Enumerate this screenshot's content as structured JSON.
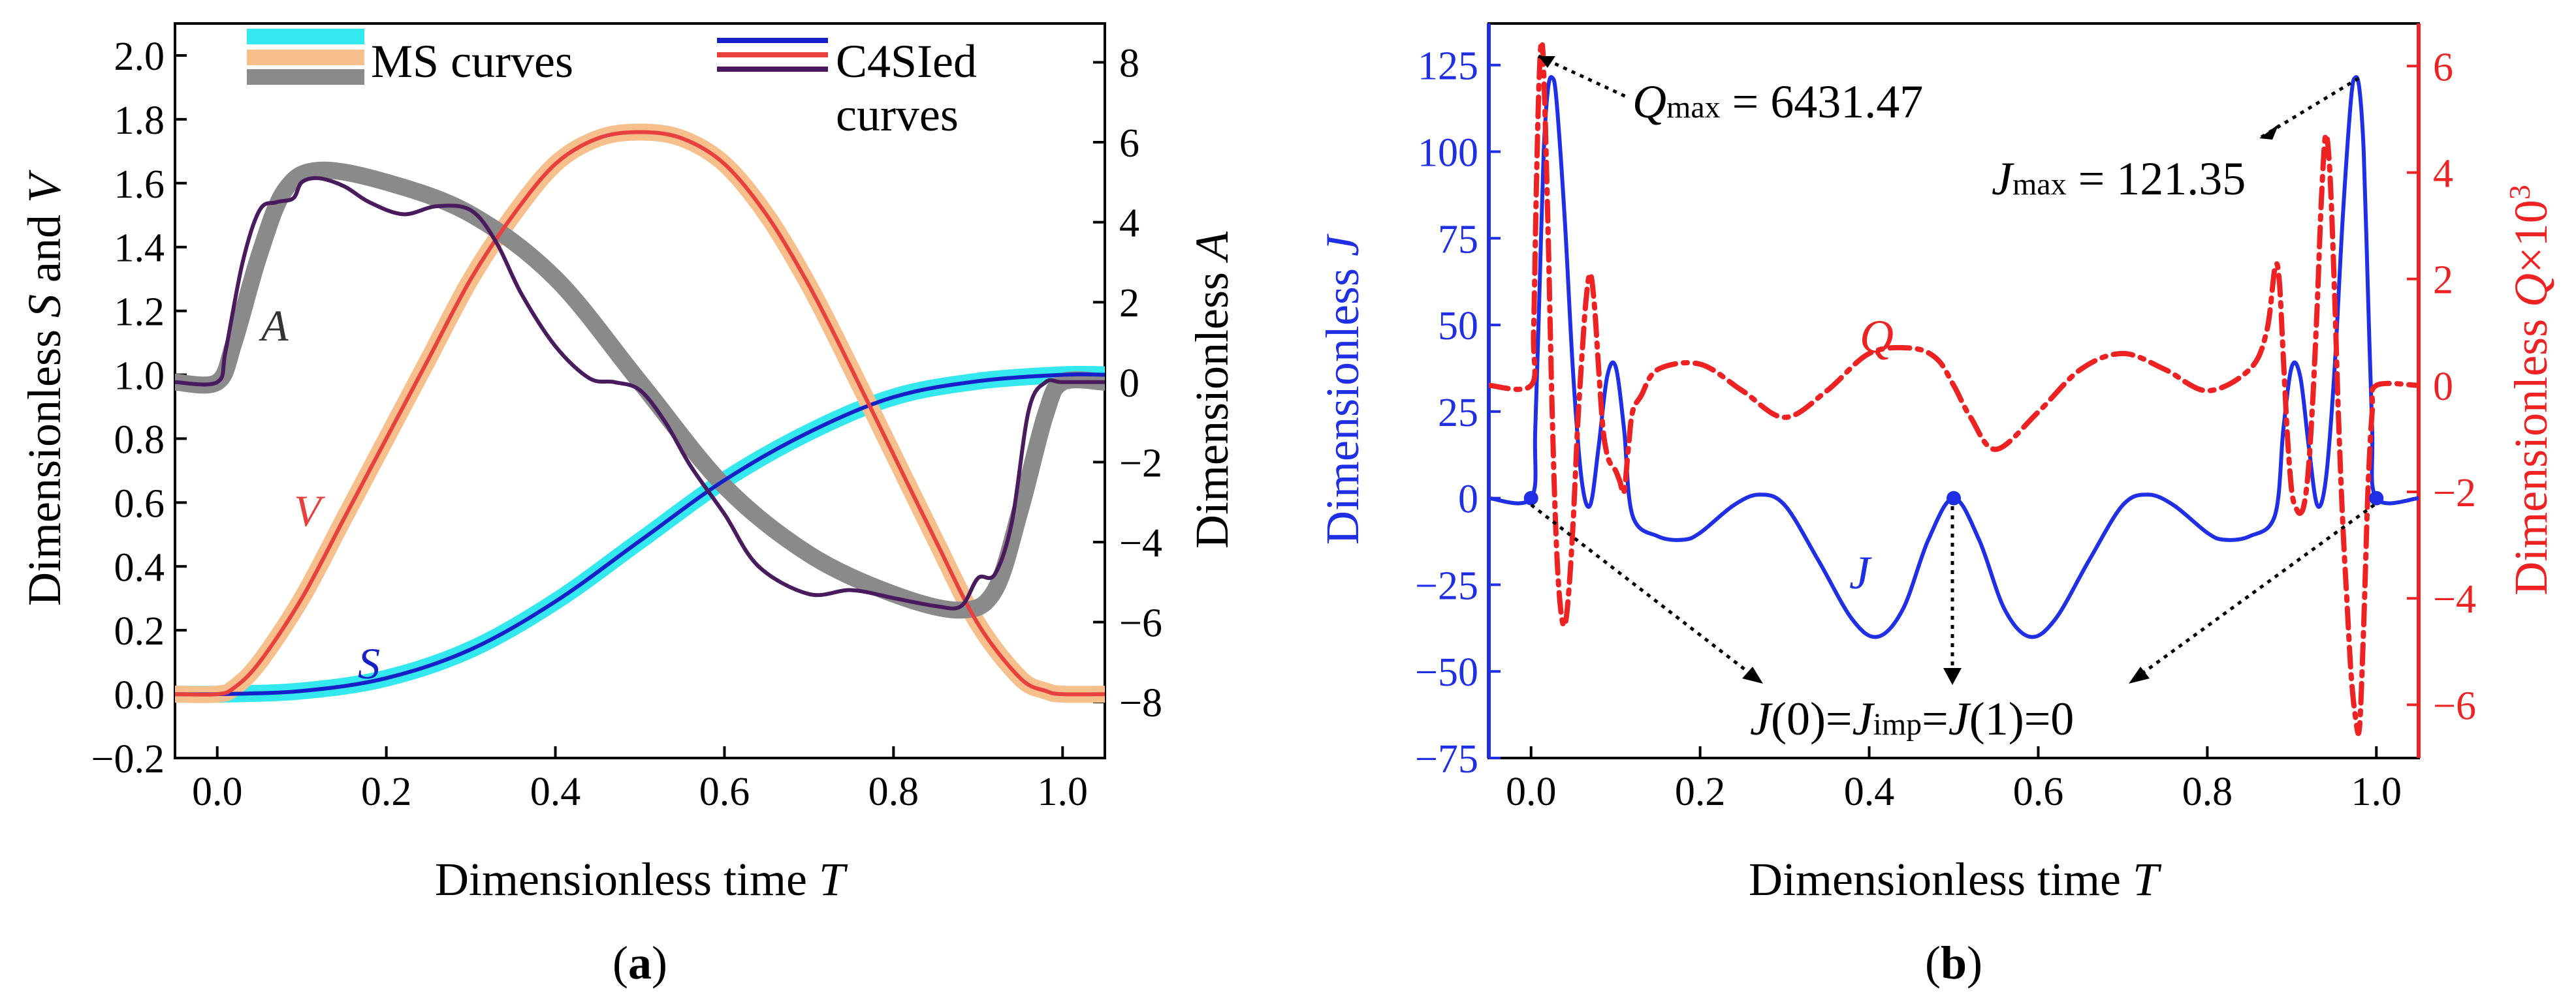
{
  "figure": {
    "panel_a_caption": "a",
    "panel_b_caption": "b"
  },
  "colors": {
    "ms_s": "#33e8ee",
    "ms_v": "#f6bf8c",
    "ms_a": "#8a8a8a",
    "c4_s": "#1620c8",
    "c4_v": "#e8403e",
    "c4_a": "#4a1a5e",
    "jerk": "#1f2fe6",
    "snap": "#ee2222"
  },
  "chart_data": [
    {
      "id": "a",
      "type": "line",
      "xlabel_prefix": "Dimensionless time ",
      "xlabel_var": "T",
      "ylabel_prefix": "Dimensionless ",
      "ylabel_var1": "S",
      "ylabel_mid": " and ",
      "ylabel_var2": "V",
      "y2label_prefix": "Dimensionless ",
      "y2label_var": "A",
      "xlim": [
        -0.05,
        1.05
      ],
      "ylim": [
        -0.2,
        2.1
      ],
      "y2lim": [
        -9.4,
        8.97
      ],
      "xticks": [
        0.0,
        0.2,
        0.4,
        0.6,
        0.8,
        1.0
      ],
      "xtick_labels": [
        "0.0",
        "0.2",
        "0.4",
        "0.6",
        "0.8",
        "1.0"
      ],
      "yticks": [
        -0.2,
        0.0,
        0.2,
        0.4,
        0.6,
        0.8,
        1.0,
        1.2,
        1.4,
        1.6,
        1.8,
        2.0
      ],
      "ytick_labels": [
        "−0.2",
        "0.0",
        "0.2",
        "0.4",
        "0.6",
        "0.8",
        "1.0",
        "1.2",
        "1.4",
        "1.6",
        "1.8",
        "2.0"
      ],
      "y2ticks": [
        -8,
        -6,
        -4,
        -2,
        0,
        2,
        4,
        6,
        8
      ],
      "y2tick_labels": [
        "−8",
        "−6",
        "−4",
        "−2",
        "0",
        "2",
        "4",
        "6",
        "8"
      ],
      "legend": [
        "MS curves",
        "C4SIed",
        "curves"
      ],
      "annotations": [
        "A",
        "V",
        "S"
      ],
      "series": [
        {
          "name": "MS S",
          "axis": "left",
          "color_key": "ms_s",
          "style": "band",
          "x": [
            -0.05,
            0.0,
            0.1,
            0.2,
            0.3,
            0.4,
            0.5,
            0.6,
            0.7,
            0.8,
            0.9,
            1.0,
            1.05
          ],
          "values": [
            0.0,
            0.0,
            0.01,
            0.05,
            0.14,
            0.29,
            0.48,
            0.67,
            0.82,
            0.93,
            0.98,
            1.0,
            1.0
          ]
        },
        {
          "name": "MS V",
          "axis": "left",
          "color_key": "ms_v",
          "style": "band",
          "x": [
            -0.05,
            0.0,
            0.02,
            0.05,
            0.1,
            0.15,
            0.2,
            0.25,
            0.3,
            0.35,
            0.4,
            0.45,
            0.5,
            0.55,
            0.6,
            0.65,
            0.7,
            0.75,
            0.8,
            0.85,
            0.9,
            0.95,
            0.98,
            1.0,
            1.05
          ],
          "values": [
            0.0,
            0.0,
            0.02,
            0.1,
            0.3,
            0.55,
            0.8,
            1.05,
            1.3,
            1.5,
            1.66,
            1.74,
            1.76,
            1.74,
            1.66,
            1.5,
            1.28,
            1.02,
            0.75,
            0.48,
            0.22,
            0.05,
            0.01,
            0.0,
            0.0
          ]
        },
        {
          "name": "MS A",
          "axis": "right",
          "color_key": "ms_a",
          "style": "band",
          "x": [
            -0.05,
            0.0,
            0.02,
            0.05,
            0.08,
            0.12,
            0.2,
            0.3,
            0.4,
            0.5,
            0.6,
            0.7,
            0.8,
            0.88,
            0.92,
            0.95,
            0.98,
            1.0,
            1.05
          ],
          "values": [
            0.0,
            0.0,
            1.0,
            3.2,
            4.8,
            5.3,
            5.0,
            4.2,
            2.6,
            0.0,
            -2.6,
            -4.3,
            -5.3,
            -5.7,
            -5.2,
            -3.2,
            -0.8,
            0.0,
            0.0
          ]
        },
        {
          "name": "C4SIed S",
          "axis": "left",
          "color_key": "c4_s",
          "style": "line",
          "x": [
            -0.05,
            0.0,
            0.1,
            0.2,
            0.3,
            0.4,
            0.5,
            0.6,
            0.7,
            0.8,
            0.9,
            1.0,
            1.05
          ],
          "values": [
            0.0,
            0.0,
            0.01,
            0.05,
            0.14,
            0.29,
            0.48,
            0.67,
            0.82,
            0.93,
            0.98,
            1.0,
            1.0
          ]
        },
        {
          "name": "C4SIed V",
          "axis": "left",
          "color_key": "c4_v",
          "style": "line",
          "x": [
            -0.05,
            0.0,
            0.02,
            0.05,
            0.1,
            0.15,
            0.2,
            0.25,
            0.3,
            0.35,
            0.4,
            0.45,
            0.5,
            0.55,
            0.6,
            0.65,
            0.7,
            0.75,
            0.8,
            0.85,
            0.9,
            0.95,
            0.98,
            1.0,
            1.05
          ],
          "values": [
            0.0,
            0.0,
            0.02,
            0.1,
            0.3,
            0.55,
            0.8,
            1.05,
            1.3,
            1.5,
            1.66,
            1.74,
            1.76,
            1.74,
            1.66,
            1.5,
            1.28,
            1.02,
            0.75,
            0.48,
            0.22,
            0.05,
            0.01,
            0.0,
            0.0
          ]
        },
        {
          "name": "C4SIed A",
          "axis": "right",
          "color_key": "c4_a",
          "style": "line",
          "x": [
            -0.05,
            0.0,
            0.01,
            0.03,
            0.05,
            0.07,
            0.09,
            0.1,
            0.12,
            0.15,
            0.18,
            0.22,
            0.26,
            0.3,
            0.33,
            0.36,
            0.4,
            0.44,
            0.47,
            0.5,
            0.53,
            0.56,
            0.6,
            0.64,
            0.7,
            0.75,
            0.8,
            0.85,
            0.88,
            0.9,
            0.92,
            0.94,
            0.96,
            0.98,
            1.0,
            1.05
          ],
          "values": [
            0.0,
            0.0,
            0.8,
            3.0,
            4.3,
            4.5,
            4.6,
            5.0,
            5.1,
            4.9,
            4.5,
            4.2,
            4.4,
            4.3,
            3.5,
            2.2,
            0.9,
            0.1,
            0.0,
            -0.2,
            -1.0,
            -2.1,
            -3.3,
            -4.6,
            -5.3,
            -5.2,
            -5.4,
            -5.6,
            -5.6,
            -4.9,
            -4.8,
            -3.5,
            -0.7,
            0.0,
            0.0,
            0.0
          ]
        }
      ]
    },
    {
      "id": "b",
      "type": "line",
      "xlabel_prefix": "Dimensionless time ",
      "xlabel_var": "T",
      "ylabel_prefix": "Dimensionless ",
      "ylabel_var": "J",
      "y2label_prefix": "Dimensionless ",
      "y2label_var": "Q",
      "y2label_suffix": "×10",
      "y2label_sup": "3",
      "xlim": [
        -0.05,
        1.05
      ],
      "ylim": [
        -75,
        137
      ],
      "y2lim": [
        -7.0,
        6.8
      ],
      "xticks": [
        0.0,
        0.2,
        0.4,
        0.6,
        0.8,
        1.0
      ],
      "xtick_labels": [
        "0.0",
        "0.2",
        "0.4",
        "0.6",
        "0.8",
        "1.0"
      ],
      "yticks": [
        -75,
        -50,
        -25,
        0,
        25,
        50,
        75,
        100,
        125
      ],
      "ytick_labels": [
        "−75",
        "−50",
        "−25",
        "0",
        "25",
        "50",
        "75",
        "100",
        "125"
      ],
      "y2ticks": [
        -6,
        -4,
        -2,
        0,
        2,
        4,
        6
      ],
      "y2tick_labels": [
        "−6",
        "−4",
        "−2",
        "0",
        "2",
        "4",
        "6"
      ],
      "annotations": {
        "q_max_var": "Q",
        "q_max_sub": "max",
        "q_max_val": " = 6431.47",
        "j_max_var": "J",
        "j_max_sub": "max",
        "j_max_val": " = 121.35",
        "q_label": "Q",
        "j_label": "J",
        "boundary_a": "J",
        "boundary_b": "(0)=",
        "boundary_c": "J",
        "boundary_sub": "imp",
        "boundary_d": "=",
        "boundary_e": "J",
        "boundary_f": "(1)=0"
      },
      "series": [
        {
          "name": "J",
          "axis": "left",
          "color_key": "jerk",
          "style": "line",
          "x": [
            -0.05,
            0.0,
            0.005,
            0.01,
            0.015,
            0.02,
            0.025,
            0.03,
            0.04,
            0.05,
            0.06,
            0.07,
            0.08,
            0.09,
            0.1,
            0.11,
            0.12,
            0.15,
            0.18,
            0.2,
            0.24,
            0.27,
            0.3,
            0.34,
            0.38,
            0.41,
            0.44,
            0.47,
            0.5,
            0.53,
            0.56,
            0.59,
            0.62,
            0.66,
            0.7,
            0.73,
            0.76,
            0.8,
            0.82,
            0.85,
            0.88,
            0.89,
            0.9,
            0.91,
            0.92,
            0.93,
            0.94,
            0.95,
            0.96,
            0.97,
            0.975,
            0.98,
            0.985,
            0.99,
            0.995,
            1.0,
            1.05
          ],
          "values": [
            0.0,
            0.0,
            20.0,
            60.0,
            100.0,
            118.0,
            121.35,
            115.0,
            80.0,
            35.0,
            5.0,
            -2.0,
            15.0,
            35.0,
            38.0,
            20.0,
            -5.0,
            -11.0,
            -12.0,
            -10.0,
            -2.0,
            1.0,
            -2.0,
            -18.0,
            -35.0,
            -40.0,
            -32.0,
            -12.0,
            0.0,
            -12.0,
            -32.0,
            -40.0,
            -35.0,
            -18.0,
            -2.0,
            1.0,
            -2.0,
            -10.0,
            -12.0,
            -11.0,
            -5.0,
            20.0,
            38.0,
            35.0,
            15.0,
            -2.0,
            5.0,
            35.0,
            80.0,
            115.0,
            121.35,
            118.0,
            100.0,
            60.0,
            20.0,
            0.0,
            0.0
          ]
        },
        {
          "name": "Q",
          "axis": "right",
          "color_key": "snap",
          "style": "dashdot",
          "x": [
            -0.05,
            0.0,
            0.003,
            0.006,
            0.009,
            0.012,
            0.015,
            0.02,
            0.025,
            0.03,
            0.035,
            0.04,
            0.045,
            0.05,
            0.055,
            0.06,
            0.065,
            0.07,
            0.075,
            0.08,
            0.085,
            0.09,
            0.095,
            0.1,
            0.105,
            0.11,
            0.115,
            0.12,
            0.13,
            0.15,
            0.2,
            0.25,
            0.3,
            0.35,
            0.4,
            0.45,
            0.48,
            0.5,
            0.52,
            0.55,
            0.6,
            0.65,
            0.7,
            0.75,
            0.8,
            0.85,
            0.87,
            0.88,
            0.885,
            0.89,
            0.895,
            0.9,
            0.905,
            0.91,
            0.915,
            0.92,
            0.925,
            0.93,
            0.935,
            0.94,
            0.945,
            0.95,
            0.955,
            0.96,
            0.965,
            0.97,
            0.975,
            0.98,
            0.985,
            0.99,
            0.995,
            1.0,
            1.05
          ],
          "values": [
            0.0,
            0.0,
            1.0,
            3.5,
            5.5,
            6.43,
            5.9,
            3.0,
            -0.5,
            -3.0,
            -4.2,
            -4.5,
            -3.8,
            -2.5,
            -0.8,
            0.5,
            1.6,
            2.1,
            1.5,
            0.3,
            -0.8,
            -1.3,
            -1.5,
            -1.6,
            -1.8,
            -2.0,
            -1.2,
            -0.5,
            -0.2,
            0.3,
            0.4,
            -0.1,
            -0.6,
            -0.1,
            0.6,
            0.7,
            0.5,
            0.0,
            -0.6,
            -1.2,
            -0.5,
            0.3,
            0.6,
            0.3,
            -0.1,
            0.3,
            1.0,
            2.2,
            2.0,
            0.5,
            -1.0,
            -2.0,
            -2.3,
            -2.4,
            -2.2,
            -1.5,
            -0.2,
            1.5,
            3.5,
            4.7,
            4.0,
            2.0,
            -0.5,
            -2.5,
            -4.0,
            -5.4,
            -6.2,
            -6.43,
            -4.5,
            -2.0,
            -0.5,
            0.0,
            0.0
          ]
        }
      ]
    }
  ]
}
